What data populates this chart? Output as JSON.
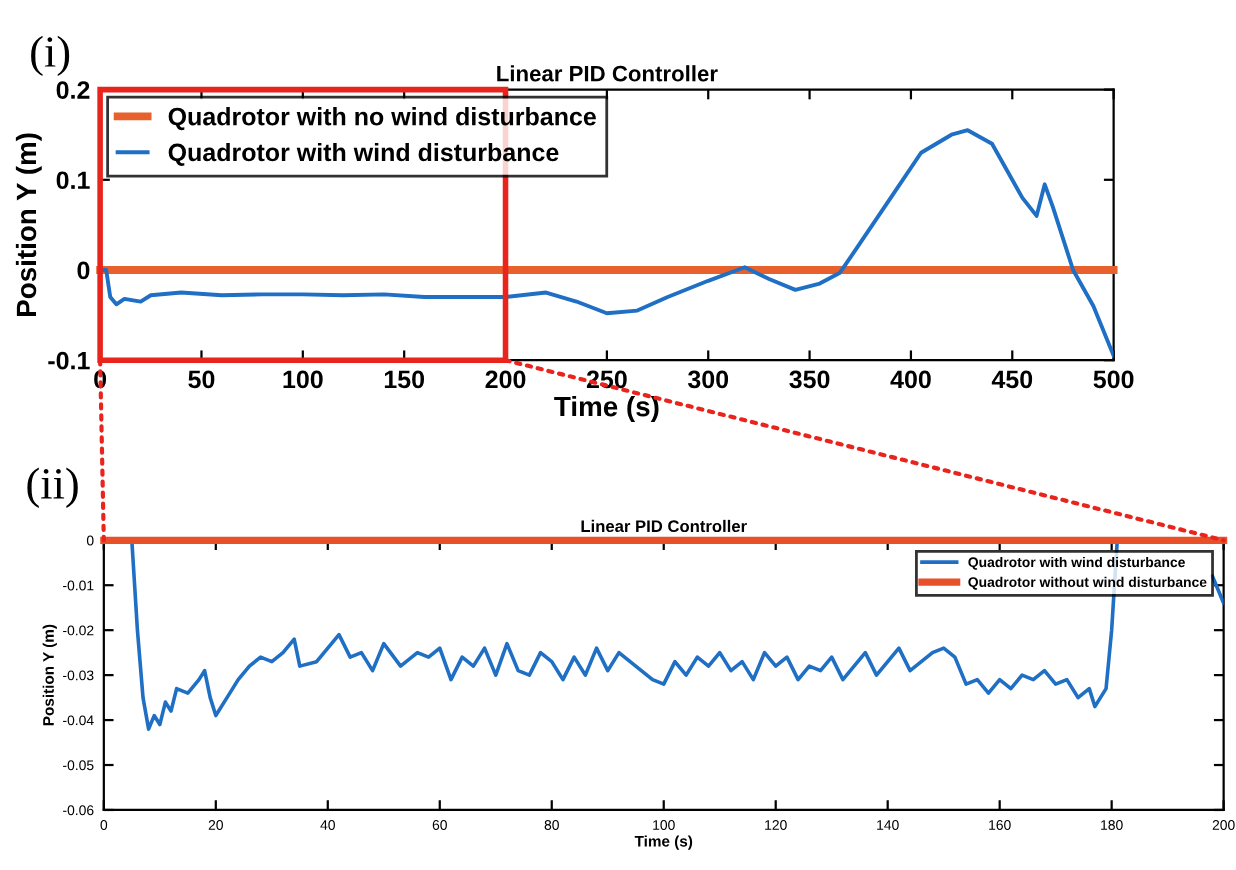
{
  "chart_data": [
    {
      "type": "line",
      "title": "Linear PID Controller",
      "xlabel": "Time (s)",
      "ylabel": "Position Y (m)",
      "annotations": [
        "(i)"
      ],
      "xlim": [
        0,
        500
      ],
      "xticks": [
        0,
        50,
        100,
        150,
        200,
        250,
        300,
        350,
        400,
        450,
        500
      ],
      "ylim": [
        -0.1,
        0.2
      ],
      "yticks": [
        -0.1,
        0,
        0.1,
        0.2
      ],
      "legend": "top left",
      "grid": false,
      "series": [
        {
          "name": "Quadrotor with no wind disturbance",
          "color": "#e8612c",
          "x": [
            0,
            500
          ],
          "values": [
            0,
            0
          ]
        },
        {
          "name": "Quadrotor with wind disturbance",
          "color": "#1f6fc4",
          "x": [
            0,
            3,
            5,
            8,
            12,
            20,
            25,
            40,
            60,
            80,
            100,
            120,
            140,
            160,
            180,
            200,
            220,
            235,
            250,
            265,
            280,
            300,
            318,
            330,
            343,
            355,
            365,
            375,
            390,
            405,
            420,
            428,
            440,
            455,
            462,
            466,
            470,
            480,
            490,
            500
          ],
          "values": [
            0,
            0,
            -0.03,
            -0.038,
            -0.032,
            -0.035,
            -0.028,
            -0.025,
            -0.028,
            -0.027,
            -0.027,
            -0.028,
            -0.027,
            -0.03,
            -0.03,
            -0.03,
            -0.025,
            -0.035,
            -0.048,
            -0.045,
            -0.03,
            -0.012,
            0.003,
            -0.01,
            -0.022,
            -0.015,
            -0.003,
            0.03,
            0.08,
            0.13,
            0.15,
            0.155,
            0.14,
            0.08,
            0.06,
            0.095,
            0.07,
            0.0,
            -0.04,
            -0.095
          ]
        }
      ]
    },
    {
      "type": "line",
      "title": "Linear PID Controller",
      "xlabel": "Time (s)",
      "ylabel": "Position Y (m)",
      "annotations": [
        "(ii)"
      ],
      "xlim": [
        0,
        200
      ],
      "xticks": [
        0,
        20,
        40,
        60,
        80,
        100,
        120,
        140,
        160,
        180,
        200
      ],
      "ylim": [
        -0.06,
        0
      ],
      "yticks": [
        -0.06,
        -0.05,
        -0.04,
        -0.03,
        -0.02,
        -0.01,
        0
      ],
      "legend": "top right",
      "grid": false,
      "series": [
        {
          "name": "Quadrotor with wind disturbance",
          "color": "#1f6fc4",
          "x": [
            0,
            5,
            6,
            7,
            8,
            9,
            10,
            11,
            12,
            13,
            15,
            17,
            18,
            19,
            20,
            22,
            24,
            26,
            28,
            30,
            32,
            34,
            35,
            38,
            40,
            42,
            44,
            46,
            48,
            50,
            53,
            56,
            58,
            60,
            62,
            64,
            66,
            68,
            70,
            72,
            74,
            76,
            78,
            80,
            82,
            84,
            86,
            88,
            90,
            92,
            94,
            96,
            98,
            100,
            102,
            104,
            106,
            108,
            110,
            112,
            114,
            116,
            118,
            120,
            122,
            124,
            126,
            128,
            130,
            132,
            134,
            136,
            138,
            140,
            142,
            144,
            146,
            148,
            150,
            152,
            154,
            156,
            158,
            160,
            162,
            164,
            166,
            168,
            170,
            172,
            174,
            176,
            177,
            179,
            180,
            181,
            190,
            198,
            200
          ],
          "values": [
            0,
            0,
            -0.02,
            -0.035,
            -0.042,
            -0.039,
            -0.041,
            -0.036,
            -0.038,
            -0.033,
            -0.034,
            -0.031,
            -0.029,
            -0.035,
            -0.039,
            -0.035,
            -0.031,
            -0.028,
            -0.026,
            -0.027,
            -0.025,
            -0.022,
            -0.028,
            -0.027,
            -0.024,
            -0.021,
            -0.026,
            -0.025,
            -0.029,
            -0.023,
            -0.028,
            -0.025,
            -0.026,
            -0.024,
            -0.031,
            -0.026,
            -0.028,
            -0.024,
            -0.03,
            -0.023,
            -0.029,
            -0.03,
            -0.025,
            -0.027,
            -0.031,
            -0.026,
            -0.03,
            -0.024,
            -0.029,
            -0.025,
            -0.027,
            -0.029,
            -0.031,
            -0.032,
            -0.027,
            -0.03,
            -0.026,
            -0.028,
            -0.025,
            -0.029,
            -0.027,
            -0.031,
            -0.025,
            -0.028,
            -0.026,
            -0.031,
            -0.028,
            -0.029,
            -0.026,
            -0.031,
            -0.028,
            -0.025,
            -0.03,
            -0.027,
            -0.024,
            -0.029,
            -0.027,
            -0.025,
            -0.024,
            -0.026,
            -0.032,
            -0.031,
            -0.034,
            -0.031,
            -0.033,
            -0.03,
            -0.031,
            -0.029,
            -0.032,
            -0.031,
            -0.035,
            -0.033,
            -0.037,
            -0.033,
            -0.02,
            0,
            null,
            -0.008,
            -0.014
          ]
        },
        {
          "name": "Quadrotor without wind disturbance",
          "color": "#e8502a",
          "x": [
            0,
            200
          ],
          "values": [
            0,
            0
          ]
        }
      ]
    }
  ]
}
